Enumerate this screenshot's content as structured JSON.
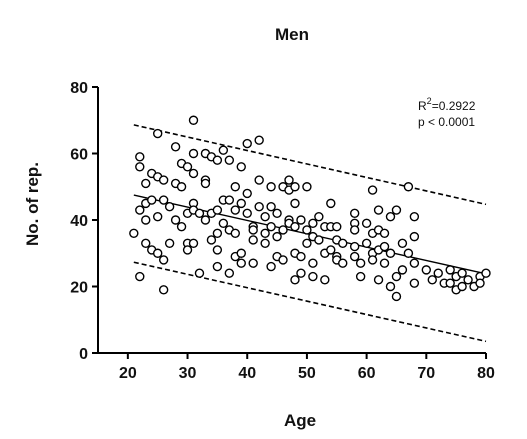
{
  "chart_data": {
    "type": "scatter",
    "title": "Men",
    "xlabel": "Age",
    "ylabel": "No. of rep.",
    "xlim": [
      15,
      80
    ],
    "ylim": [
      0,
      80
    ],
    "xticks": [
      20,
      30,
      40,
      50,
      60,
      70,
      80
    ],
    "yticks": [
      0,
      20,
      40,
      60,
      80
    ],
    "grid": false,
    "annotation": {
      "r2_prefix": "R",
      "r2_sup": "2",
      "r2_value": "=0.2922",
      "p_text": "p < 0.0001"
    },
    "regression_line": {
      "x": [
        21,
        80
      ],
      "y": [
        47.5,
        23.8
      ]
    },
    "prediction_band_upper": {
      "x": [
        21,
        80
      ],
      "y": [
        68.6,
        44.7
      ]
    },
    "prediction_band_lower": {
      "x": [
        21,
        80
      ],
      "y": [
        27.3,
        3.5
      ]
    },
    "points": [
      [
        21,
        36
      ],
      [
        22,
        59
      ],
      [
        22,
        56
      ],
      [
        22,
        43
      ],
      [
        22,
        23
      ],
      [
        23,
        51
      ],
      [
        23,
        45
      ],
      [
        23,
        40
      ],
      [
        23,
        33
      ],
      [
        24,
        54
      ],
      [
        24,
        46
      ],
      [
        24,
        31
      ],
      [
        25,
        66
      ],
      [
        25,
        53
      ],
      [
        25,
        41
      ],
      [
        25,
        30
      ],
      [
        26,
        52
      ],
      [
        26,
        46
      ],
      [
        26,
        28
      ],
      [
        26,
        19
      ],
      [
        27,
        44
      ],
      [
        27,
        33
      ],
      [
        28,
        62
      ],
      [
        28,
        51
      ],
      [
        28,
        40
      ],
      [
        29,
        57
      ],
      [
        29,
        50
      ],
      [
        29,
        38
      ],
      [
        30,
        56
      ],
      [
        30,
        42
      ],
      [
        30,
        33
      ],
      [
        30,
        31
      ],
      [
        31,
        70
      ],
      [
        31,
        60
      ],
      [
        31,
        54
      ],
      [
        31,
        45
      ],
      [
        31,
        43
      ],
      [
        31,
        33
      ],
      [
        32,
        42
      ],
      [
        32,
        24
      ],
      [
        33,
        60
      ],
      [
        33,
        52
      ],
      [
        33,
        51
      ],
      [
        33,
        40
      ],
      [
        34,
        59
      ],
      [
        34,
        42
      ],
      [
        34,
        34
      ],
      [
        35,
        58
      ],
      [
        35,
        43
      ],
      [
        35,
        36
      ],
      [
        35,
        31
      ],
      [
        35,
        26
      ],
      [
        36,
        61
      ],
      [
        36,
        46
      ],
      [
        36,
        39
      ],
      [
        37,
        58
      ],
      [
        37,
        46
      ],
      [
        37,
        37
      ],
      [
        37,
        24
      ],
      [
        38,
        50
      ],
      [
        38,
        43
      ],
      [
        38,
        36
      ],
      [
        38,
        29
      ],
      [
        39,
        56
      ],
      [
        39,
        45
      ],
      [
        39,
        30
      ],
      [
        39,
        27
      ],
      [
        40,
        63
      ],
      [
        40,
        48
      ],
      [
        40,
        42
      ],
      [
        41,
        38
      ],
      [
        41,
        37
      ],
      [
        41,
        34
      ],
      [
        41,
        27
      ],
      [
        42,
        64
      ],
      [
        42,
        52
      ],
      [
        42,
        44
      ],
      [
        43,
        41
      ],
      [
        43,
        36
      ],
      [
        43,
        33
      ],
      [
        44,
        50
      ],
      [
        44,
        44
      ],
      [
        44,
        38
      ],
      [
        44,
        26
      ],
      [
        45,
        42
      ],
      [
        45,
        35
      ],
      [
        45,
        29
      ],
      [
        46,
        50
      ],
      [
        46,
        37
      ],
      [
        46,
        28
      ],
      [
        47,
        52
      ],
      [
        47,
        49
      ],
      [
        47,
        40
      ],
      [
        47,
        39
      ],
      [
        48,
        50
      ],
      [
        48,
        45
      ],
      [
        48,
        38
      ],
      [
        48,
        30
      ],
      [
        48,
        22
      ],
      [
        49,
        40
      ],
      [
        49,
        29
      ],
      [
        49,
        24
      ],
      [
        50,
        50
      ],
      [
        50,
        37
      ],
      [
        50,
        33
      ],
      [
        51,
        39
      ],
      [
        51,
        35
      ],
      [
        51,
        27
      ],
      [
        51,
        23
      ],
      [
        52,
        41
      ],
      [
        52,
        34
      ],
      [
        53,
        38
      ],
      [
        53,
        30
      ],
      [
        53,
        22
      ],
      [
        54,
        45
      ],
      [
        54,
        38
      ],
      [
        54,
        31
      ],
      [
        55,
        38
      ],
      [
        55,
        34
      ],
      [
        55,
        29
      ],
      [
        55,
        28
      ],
      [
        56,
        33
      ],
      [
        56,
        27
      ],
      [
        58,
        42
      ],
      [
        58,
        39
      ],
      [
        58,
        37
      ],
      [
        58,
        32
      ],
      [
        58,
        29
      ],
      [
        59,
        27
      ],
      [
        59,
        23
      ],
      [
        60,
        39
      ],
      [
        60,
        33
      ],
      [
        61,
        49
      ],
      [
        61,
        36
      ],
      [
        61,
        30
      ],
      [
        61,
        28
      ],
      [
        62,
        43
      ],
      [
        62,
        37
      ],
      [
        62,
        31
      ],
      [
        62,
        22
      ],
      [
        63,
        36
      ],
      [
        63,
        32
      ],
      [
        63,
        27
      ],
      [
        64,
        41
      ],
      [
        64,
        30
      ],
      [
        64,
        20
      ],
      [
        65,
        43
      ],
      [
        65,
        23
      ],
      [
        65,
        17
      ],
      [
        66,
        33
      ],
      [
        66,
        25
      ],
      [
        67,
        50
      ],
      [
        67,
        30
      ],
      [
        68,
        41
      ],
      [
        68,
        35
      ],
      [
        68,
        27
      ],
      [
        68,
        21
      ],
      [
        70,
        25
      ],
      [
        71,
        22
      ],
      [
        72,
        24
      ],
      [
        73,
        21
      ],
      [
        74,
        25
      ],
      [
        74,
        21
      ],
      [
        75,
        23
      ],
      [
        75,
        19
      ],
      [
        76,
        24
      ],
      [
        76,
        20
      ],
      [
        77,
        22
      ],
      [
        78,
        20
      ],
      [
        79,
        23
      ],
      [
        79,
        21
      ],
      [
        80,
        24
      ]
    ],
    "colors": {
      "points_stroke": "#000000",
      "points_fill": "#ffffff",
      "line": "#000000",
      "band": "#000000",
      "axis": "#000000"
    }
  }
}
